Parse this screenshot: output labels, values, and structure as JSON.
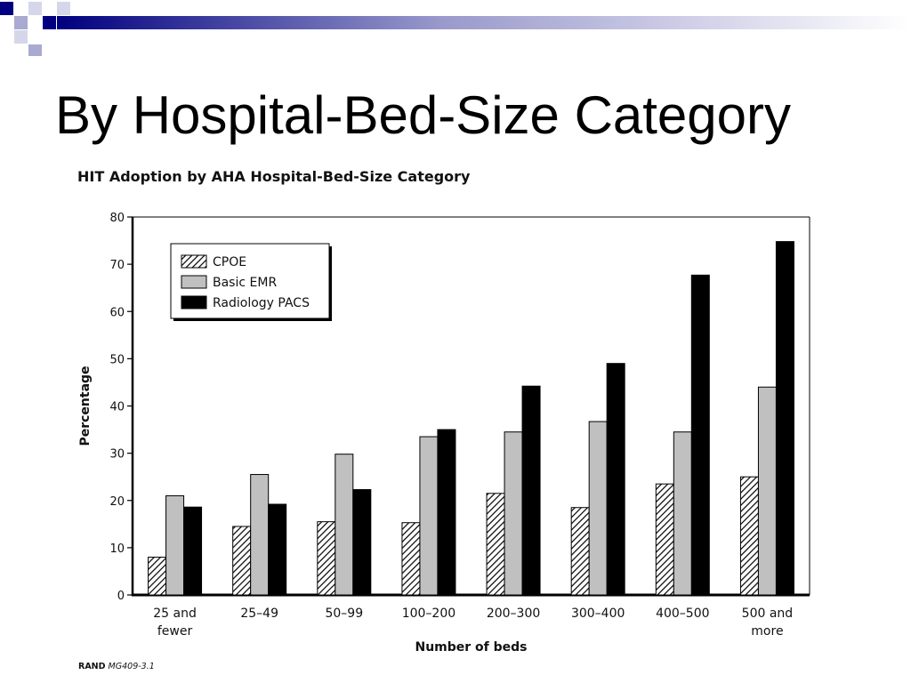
{
  "slide": {
    "title": "By Hospital-Bed-Size Category",
    "decoration_colors": [
      "#000080",
      "#6666b3",
      "#a9a9d1",
      "#d6d6eb"
    ]
  },
  "chart_data": {
    "type": "bar",
    "title": "HIT Adoption by AHA Hospital-Bed-Size Category",
    "xlabel": "Number of beds",
    "ylabel": "Percentage",
    "ylim": [
      0,
      80
    ],
    "yticks": [
      0,
      10,
      20,
      30,
      40,
      50,
      60,
      70,
      80
    ],
    "categories": [
      [
        "25 and",
        "fewer"
      ],
      [
        "25–49"
      ],
      [
        "50–99"
      ],
      [
        "100–200"
      ],
      [
        "200–300"
      ],
      [
        "300–400"
      ],
      [
        "400–500"
      ],
      [
        "500 and",
        "more"
      ]
    ],
    "series": [
      {
        "name": "CPOE",
        "fill": "hatch",
        "color": "#000000",
        "values": [
          8,
          14.5,
          15.5,
          15.3,
          21.5,
          18.5,
          23.5,
          25
        ]
      },
      {
        "name": "Basic EMR",
        "fill": "solid",
        "color": "#c0c0c0",
        "values": [
          21,
          25.5,
          29.8,
          33.5,
          34.5,
          36.7,
          34.5,
          44
        ]
      },
      {
        "name": "Radiology PACS",
        "fill": "solid",
        "color": "#000000",
        "values": [
          18.6,
          19.2,
          22.3,
          35,
          44.2,
          49,
          67.7,
          74.8
        ]
      }
    ],
    "legend_position": "top-left",
    "grid": false
  },
  "source": {
    "prefix": "RAND",
    "code": "MG409-3.1"
  }
}
